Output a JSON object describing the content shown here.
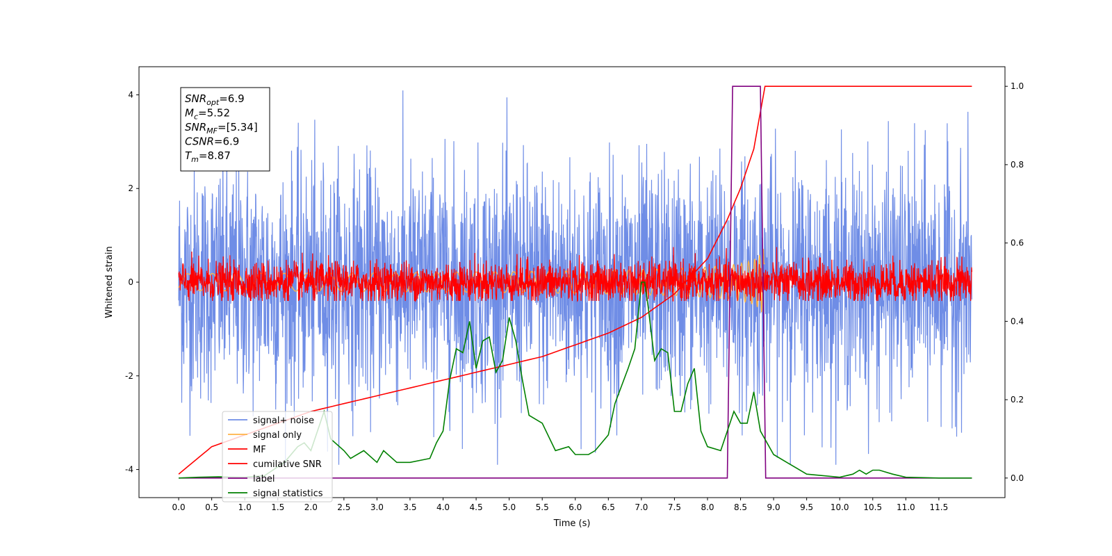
{
  "chart_data": {
    "type": "line",
    "xlabel": "Time (s)",
    "ylabel_left": "Whitened strain",
    "xlim": [
      -0.6,
      12.5
    ],
    "ylim_left": [
      -4.6,
      4.6
    ],
    "ylim_right": [
      -0.05,
      1.05
    ],
    "x_ticks": [
      "0.0",
      "0.5",
      "1.0",
      "1.5",
      "2.0",
      "2.5",
      "3.0",
      "3.5",
      "4.0",
      "4.5",
      "5.0",
      "5.5",
      "6.0",
      "6.5",
      "7.0",
      "7.5",
      "8.0",
      "8.5",
      "9.0",
      "9.5",
      "10.0",
      "10.5",
      "11.0",
      "11.5"
    ],
    "y_ticks_left": [
      "-4",
      "-2",
      "0",
      "2",
      "4"
    ],
    "y_ticks_right": [
      "0.0",
      "0.2",
      "0.4",
      "0.6",
      "0.8",
      "1.0"
    ],
    "legend_position": "lower-left",
    "annotation": [
      {
        "sym": "SNR",
        "sub": "opt",
        "value": "=6.9"
      },
      {
        "sym": "M",
        "sub": "c",
        "value": "=5.52"
      },
      {
        "sym": "SNR",
        "sub": "MF",
        "value": "=[5.34]"
      },
      {
        "sym": "CSNR",
        "sub": "",
        "value": "=6.9"
      },
      {
        "sym": "T",
        "sub": "m",
        "value": "=8.87"
      }
    ],
    "series": [
      {
        "name": "signal+ noise",
        "color": "#6f8de6",
        "axis": "left",
        "style": "noise",
        "amplitude_std": 1.0,
        "x_range": [
          0.0,
          12.0
        ],
        "y_max": 4.1,
        "y_min": -3.9
      },
      {
        "name": "signal only",
        "color": "#ffb347",
        "axis": "left",
        "style": "chirp",
        "x_range": [
          0.0,
          8.87
        ],
        "peak_amplitude": 0.7
      },
      {
        "name": "MF",
        "color": "#ff0000",
        "axis": "left",
        "style": "noise",
        "amplitude_std": 0.2,
        "x_range": [
          0.0,
          12.0
        ]
      },
      {
        "name": "cumilative SNR",
        "color": "#ff0000",
        "axis": "right",
        "x": [
          0.0,
          0.5,
          1.0,
          1.5,
          2.0,
          2.5,
          3.0,
          3.5,
          4.0,
          4.5,
          5.0,
          5.5,
          6.0,
          6.5,
          7.0,
          7.5,
          8.0,
          8.3,
          8.5,
          8.7,
          8.87,
          9.0,
          12.0
        ],
        "values": [
          0.01,
          0.08,
          0.11,
          0.14,
          0.17,
          0.19,
          0.21,
          0.23,
          0.25,
          0.27,
          0.29,
          0.31,
          0.34,
          0.37,
          0.41,
          0.47,
          0.56,
          0.66,
          0.74,
          0.84,
          1.0,
          1.0,
          1.0
        ]
      },
      {
        "name": "label",
        "color": "#800080",
        "axis": "right",
        "x": [
          0.0,
          8.3,
          8.38,
          8.8,
          8.88,
          12.0
        ],
        "values": [
          0.0,
          0.0,
          1.0,
          1.0,
          0.0,
          0.0
        ]
      },
      {
        "name": "signal statistics",
        "color": "#008000",
        "axis": "right",
        "x": [
          0.0,
          0.3,
          0.6,
          1.0,
          1.3,
          1.6,
          1.8,
          1.9,
          2.0,
          2.1,
          2.2,
          2.3,
          2.5,
          2.6,
          2.8,
          3.0,
          3.1,
          3.3,
          3.5,
          3.8,
          3.9,
          4.0,
          4.1,
          4.2,
          4.3,
          4.4,
          4.5,
          4.6,
          4.7,
          4.8,
          4.9,
          5.0,
          5.1,
          5.2,
          5.3,
          5.5,
          5.7,
          5.9,
          6.0,
          6.2,
          6.3,
          6.5,
          6.6,
          6.8,
          6.9,
          7.0,
          7.05,
          7.1,
          7.2,
          7.3,
          7.4,
          7.5,
          7.6,
          7.7,
          7.8,
          7.9,
          8.0,
          8.2,
          8.4,
          8.5,
          8.6,
          8.7,
          8.8,
          9.0,
          9.2,
          9.5,
          10.0,
          10.2,
          10.3,
          10.4,
          10.5,
          10.6,
          10.8,
          11.0,
          11.5,
          12.0
        ],
        "values": [
          0.0,
          0.002,
          0.003,
          0.002,
          0.006,
          0.04,
          0.08,
          0.09,
          0.07,
          0.12,
          0.17,
          0.1,
          0.07,
          0.05,
          0.07,
          0.04,
          0.07,
          0.04,
          0.04,
          0.05,
          0.09,
          0.12,
          0.25,
          0.33,
          0.32,
          0.4,
          0.28,
          0.35,
          0.36,
          0.27,
          0.3,
          0.41,
          0.35,
          0.25,
          0.16,
          0.14,
          0.07,
          0.08,
          0.06,
          0.06,
          0.07,
          0.11,
          0.19,
          0.28,
          0.33,
          0.5,
          0.5,
          0.44,
          0.3,
          0.33,
          0.32,
          0.17,
          0.17,
          0.24,
          0.28,
          0.12,
          0.08,
          0.07,
          0.17,
          0.14,
          0.14,
          0.22,
          0.12,
          0.06,
          0.04,
          0.01,
          0.002,
          0.01,
          0.02,
          0.01,
          0.02,
          0.02,
          0.01,
          0.002,
          0.0,
          0.0
        ]
      }
    ]
  }
}
